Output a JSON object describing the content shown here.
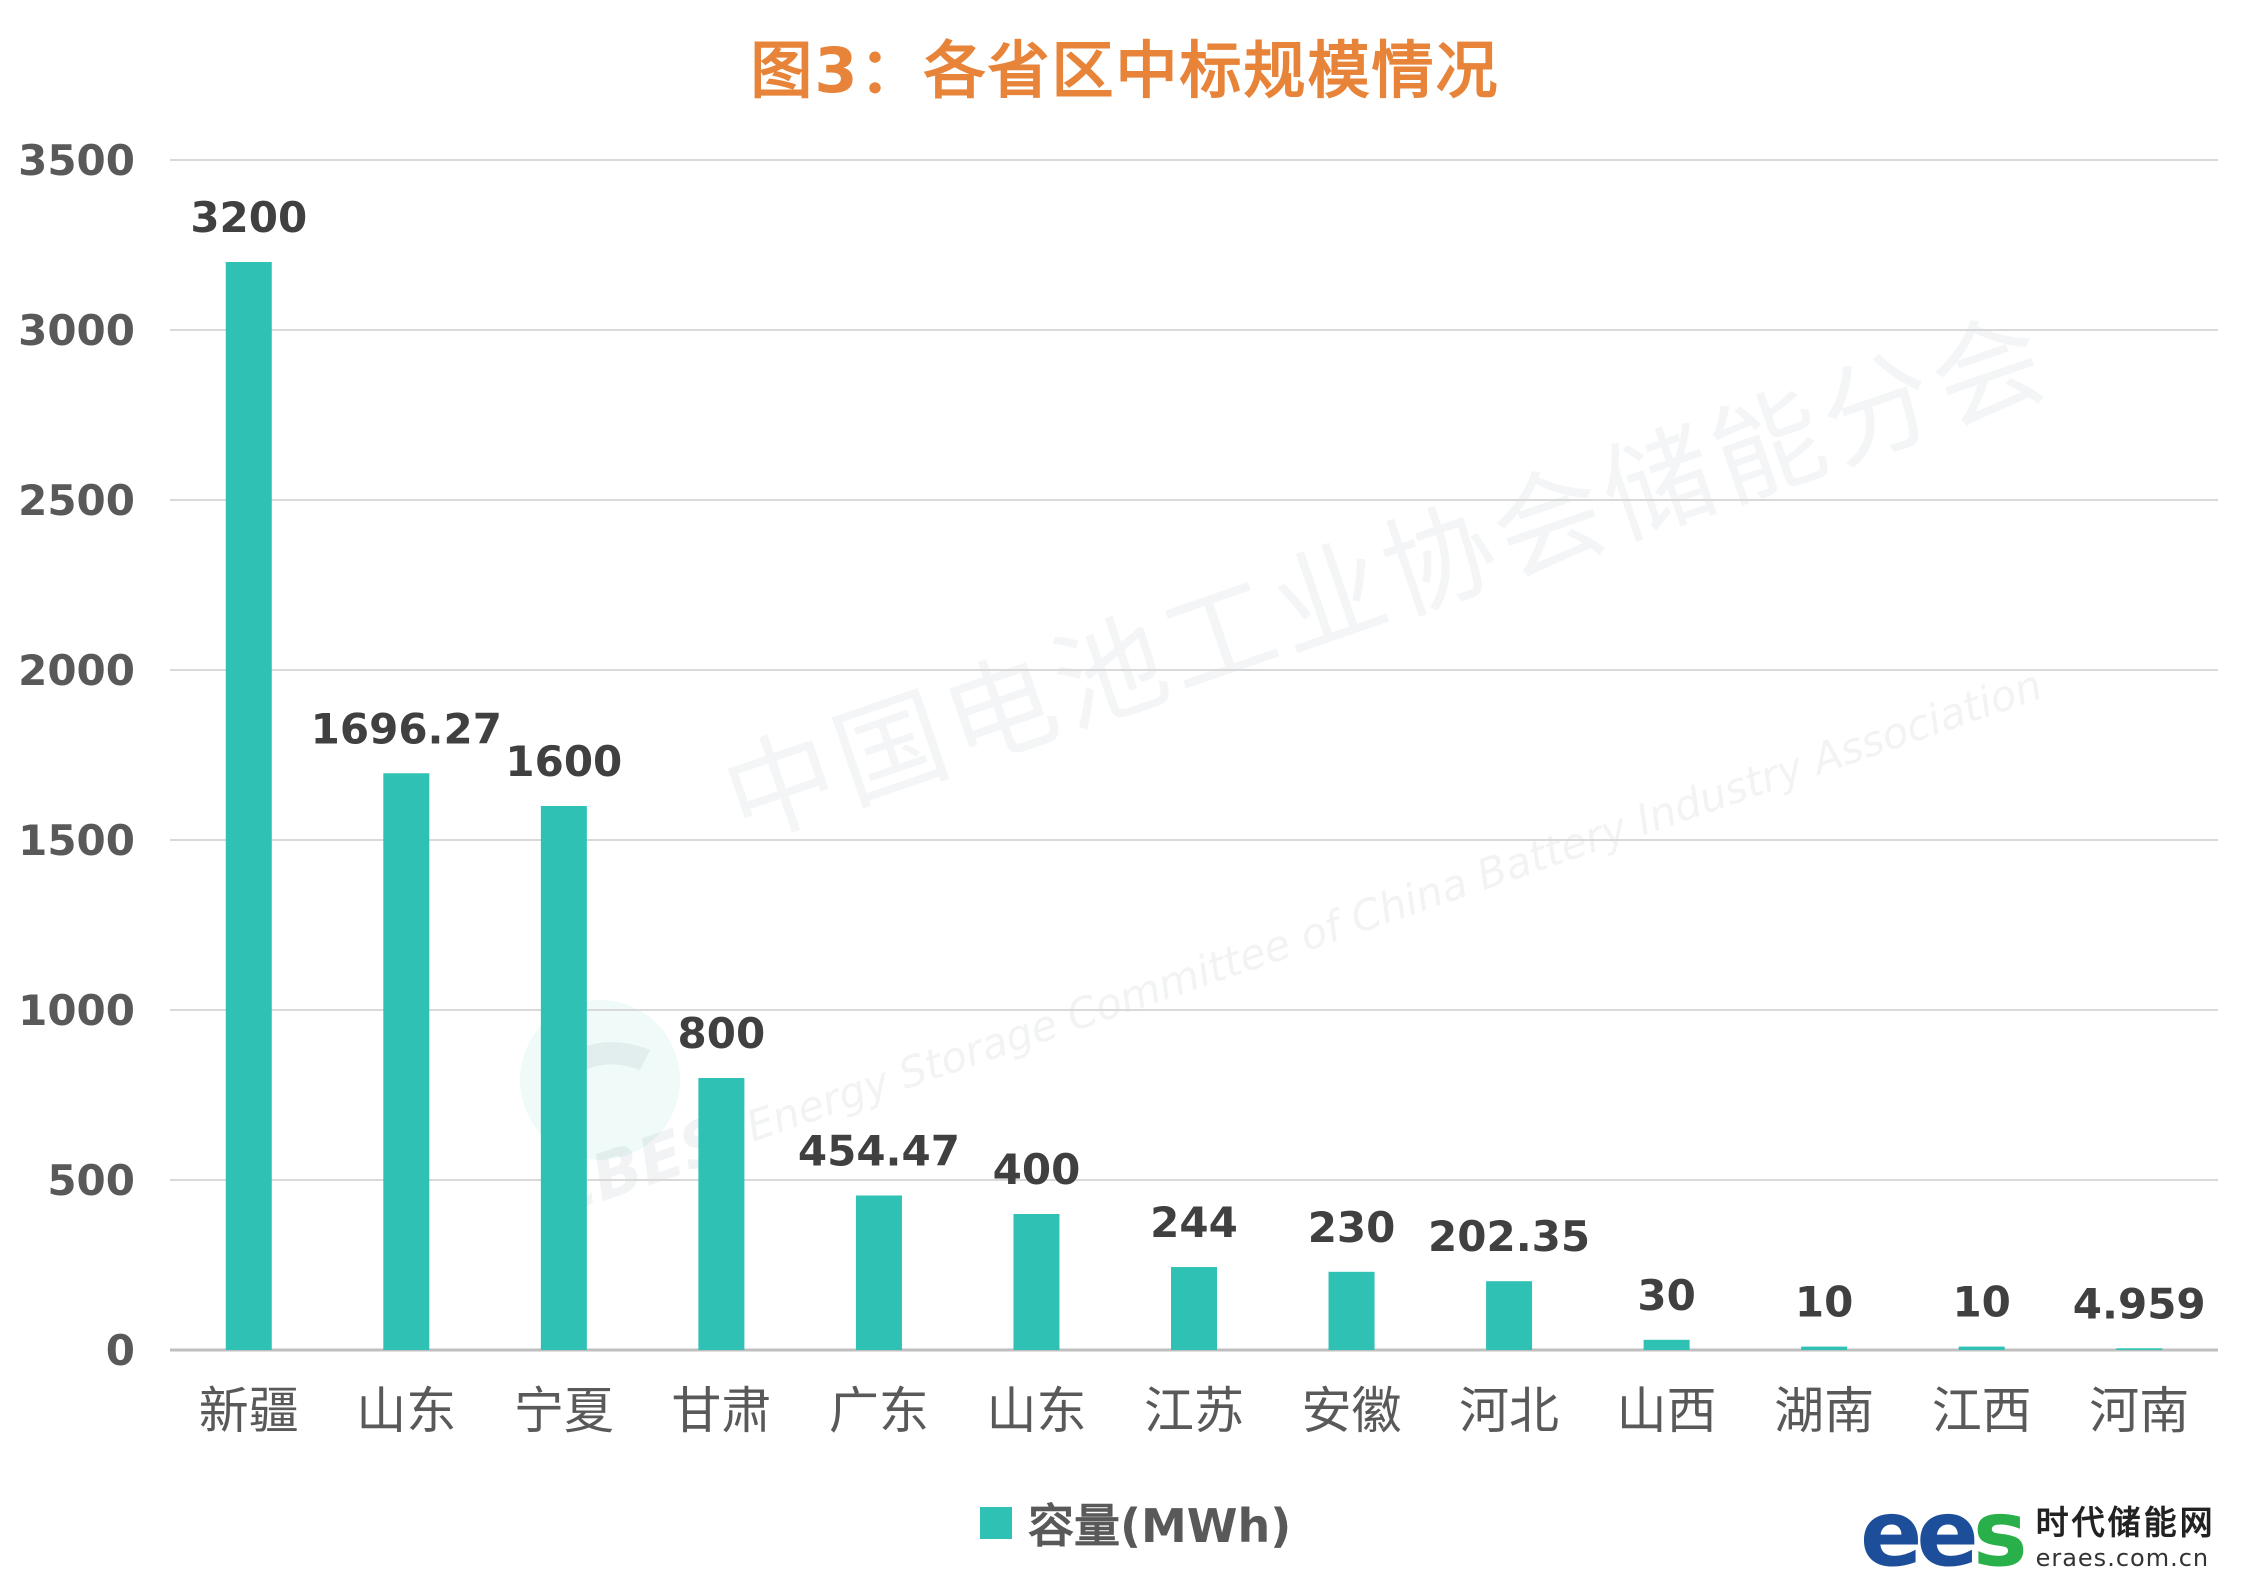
{
  "title": "图3：各省区中标规模情况",
  "colors": {
    "title": "#e7843a",
    "bar": "#2ec1b4",
    "grid": "#d9d9d9",
    "axis": "#bfbfbf",
    "brand_e": "#1d4e9a",
    "brand_s": "#2ab04a"
  },
  "chart_data": {
    "type": "bar",
    "title": "图3：各省区中标规模情况",
    "categories": [
      "新疆",
      "山东",
      "宁夏",
      "甘肃",
      "广东",
      "山东",
      "江苏",
      "安徽",
      "河北",
      "山西",
      "湖南",
      "江西",
      "河南"
    ],
    "series": [
      {
        "name": "容量(MWh)",
        "values": [
          3200,
          1696.27,
          1600,
          800,
          454.47,
          400,
          244,
          230,
          202.35,
          30,
          10,
          10,
          4.959
        ],
        "labels": [
          "3200",
          "1696.27",
          "1600",
          "800",
          "454.47",
          "400",
          "244",
          "230",
          "202.35",
          "30",
          "10",
          "10",
          "4.959"
        ]
      }
    ],
    "ylim": [
      0,
      3500
    ],
    "yticks": [
      "0",
      "500",
      "1000",
      "1500",
      "2000",
      "2500",
      "3000",
      "3500"
    ],
    "xlabel": "",
    "ylabel": "",
    "legend": "bottom-center",
    "grid": true
  },
  "legend": {
    "label": "容量(MWh)"
  },
  "watermark": {
    "org_cn": "中国电池工业协会储能分会",
    "org_en": "Energy Storage Committee of China Battery Industry Association",
    "logo_text": "CBES"
  },
  "brand": {
    "logo": "ees",
    "name": "时代储能网",
    "url": "eraes.com.cn"
  }
}
